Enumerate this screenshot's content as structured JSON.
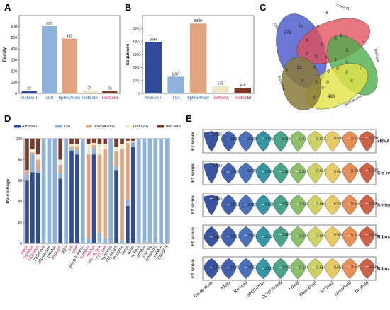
{
  "panels": {
    "A": "A",
    "B": "B",
    "C": "C",
    "D": "D",
    "E": "E"
  },
  "colors": {
    "archive": "#2f4b9a",
    "ts0": "#8fb2dc",
    "bprna": "#e0a57f",
    "testA": "#efe8c8",
    "testB": "#7a3a2a"
  },
  "chart_data": [
    {
      "id": "A",
      "type": "bar",
      "ylabel": "Family",
      "categories": [
        "Archive-II",
        "TS0",
        "bpRNAnew",
        "TestSetA",
        "TestSetB"
      ],
      "values": [
        22,
        605,
        493,
        28,
        23
      ],
      "value_labels": [
        "22",
        "605",
        "493",
        "28",
        "23"
      ],
      "category_colors": [
        "#2f4b9a",
        "#8fb2dc",
        "#e0a57f",
        "#efe8c8",
        "#7a3a2a"
      ],
      "label_colors": [
        "#2f5fb0",
        "#2f5fb0",
        "#2f5fb0",
        "#2f5fb0",
        "#c0205a"
      ],
      "ylim": [
        0,
        700
      ],
      "yticks": [
        0,
        100,
        200,
        300,
        400,
        500,
        600
      ]
    },
    {
      "id": "B",
      "type": "bar",
      "ylabel": "Sequence",
      "categories": [
        "Archive-II",
        "TS0",
        "bpRNAnew",
        "TestSetA",
        "TestSetB"
      ],
      "values": [
        3966,
        1287,
        5388,
        575,
        428
      ],
      "value_labels": [
        "3966",
        "1287",
        "5388",
        "575",
        "428"
      ],
      "category_colors": [
        "#2f4b9a",
        "#8fb2dc",
        "#e0a57f",
        "#efe8c8",
        "#7a3a2a"
      ],
      "label_colors": [
        "#2f5fb0",
        "#2f5fb0",
        "#2f5fb0",
        "#c0205a",
        "#c0205a"
      ],
      "ylim": [
        0,
        6000
      ],
      "yticks": [
        0,
        1000,
        2000,
        3000,
        4000,
        5000
      ]
    },
    {
      "id": "C",
      "type": "venn",
      "sets": [
        "TS0",
        "TestSetB",
        "TestSetA",
        "bpRNA-new",
        "Archive-II"
      ],
      "numbers": [
        "573",
        "8",
        "4",
        "493",
        "3",
        "12",
        "0",
        "0",
        "1",
        "0",
        "0",
        "3",
        "1",
        "0",
        "0",
        "0",
        "0",
        "0",
        "0",
        "0",
        "0",
        "12",
        "0",
        "0",
        "1",
        "0",
        "0",
        "0",
        "0"
      ]
    },
    {
      "id": "D",
      "type": "bar",
      "stacked": true,
      "ylabel": "Percentage",
      "ylim": [
        0,
        100
      ],
      "yticks": [
        0,
        20,
        40,
        60,
        80,
        100
      ],
      "legend": [
        "Archive-II",
        "TS0",
        "bpRNA-new",
        "TestSetA",
        "TestSetB"
      ],
      "categories": [
        "tRNA",
        "5SrRNA",
        "16SrRNA",
        "23SrRNA",
        "telomerase",
        "tmRNA",
        "RNaseP",
        "grp1",
        "srp",
        "SRP",
        "group II intron",
        "scaRNA",
        "mRNA",
        "HACA_box",
        "CD_box",
        "synthetic",
        "riboswitch",
        "ribozyme",
        "intron",
        "other",
        "ncRNA",
        "snRNA",
        "Cis-reg",
        "antisense",
        "miRNA",
        "CRISPR"
      ],
      "label_colors": [
        "#c0205a",
        "#c0205a",
        "#c0205a",
        "#222222",
        "#222222",
        "#222222",
        "#c0205a",
        "#222222",
        "#c0205a",
        "#c0205a",
        "#222222",
        "#c0205a",
        "#c0205a",
        "#c0205a",
        "#c0205a",
        "#222222",
        "#222222",
        "#222222",
        "#222222",
        "#222222",
        "#222222",
        "#222222",
        "#222222",
        "#222222",
        "#222222",
        "#222222"
      ],
      "series": [
        {
          "name": "Archive-II",
          "values": [
            60,
            68,
            67,
            0,
            0,
            0,
            62,
            0,
            88,
            85,
            0,
            0,
            85,
            0,
            0,
            0,
            70,
            0,
            36,
            92,
            0,
            0,
            0,
            0,
            0,
            0
          ]
        },
        {
          "name": "TS0",
          "values": [
            6,
            17,
            3,
            100,
            100,
            100,
            5,
            100,
            3,
            4,
            100,
            5,
            6,
            10,
            5,
            100,
            4,
            3,
            6,
            5,
            100,
            100,
            100,
            100,
            100,
            100
          ]
        },
        {
          "name": "bpRNA-new",
          "values": [
            3,
            2,
            10,
            0,
            0,
            0,
            8,
            0,
            2,
            4,
            0,
            80,
            3,
            75,
            85,
            0,
            14,
            87,
            54,
            0,
            0,
            0,
            0,
            0,
            0,
            0
          ]
        },
        {
          "name": "TestSetA",
          "values": [
            1,
            3,
            5,
            0,
            0,
            0,
            5,
            0,
            2,
            2,
            0,
            10,
            2,
            10,
            5,
            0,
            4,
            5,
            2,
            1,
            0,
            0,
            0,
            0,
            0,
            0
          ]
        },
        {
          "name": "TestSetB",
          "values": [
            30,
            10,
            15,
            0,
            0,
            0,
            20,
            0,
            5,
            5,
            0,
            5,
            4,
            5,
            5,
            0,
            8,
            5,
            2,
            2,
            0,
            0,
            0,
            0,
            0,
            0
          ]
        }
      ]
    },
    {
      "id": "E",
      "type": "violin",
      "ylabel": "F1 score",
      "methods": [
        "ContextFold",
        "Mfold",
        "RNAfold",
        "SPOT-RNA",
        "CONTRAfold",
        "UFold",
        "EternaFold",
        "MXfold2",
        "LinearFold",
        "TinoFold"
      ],
      "method_colors": [
        "#2f4b9a",
        "#3858a8",
        "#4269b5",
        "#2e8ea0",
        "#3f9f85",
        "#87b965",
        "#c9d15b",
        "#e8c65c",
        "#e58a4f",
        "#c95a3d"
      ],
      "rows": [
        {
          "label": "sRNA",
          "values": [
            0.835,
            0.615,
            0.609,
            0.622,
            0.606,
            0.627,
            0.615,
            0.646,
            0.628,
            0.666
          ]
        },
        {
          "label": "Cis-reg",
          "values": [
            0.842,
            0.553,
            0.599,
            0.567,
            0.562,
            0.576,
            0.61,
            0.562,
            0.615,
            0.632
          ]
        },
        {
          "label": "Antisense",
          "values": [
            0.816,
            0.518,
            0.51,
            0.528,
            0.541,
            0.548,
            0.554,
            0.537,
            0.55,
            0.566
          ]
        },
        {
          "label": "Riboswitch",
          "values": [
            0.489,
            0.515,
            0.563,
            0.497,
            0.604,
            0.546,
            0.549,
            0.598,
            0.566,
            0.594
          ]
        },
        {
          "label": "Ribozyme",
          "values": [
            0.55,
            0.547,
            0.557,
            0.507,
            0.558,
            0.548,
            0.559,
            0.556,
            0.589,
            0.604
          ]
        }
      ]
    }
  ]
}
